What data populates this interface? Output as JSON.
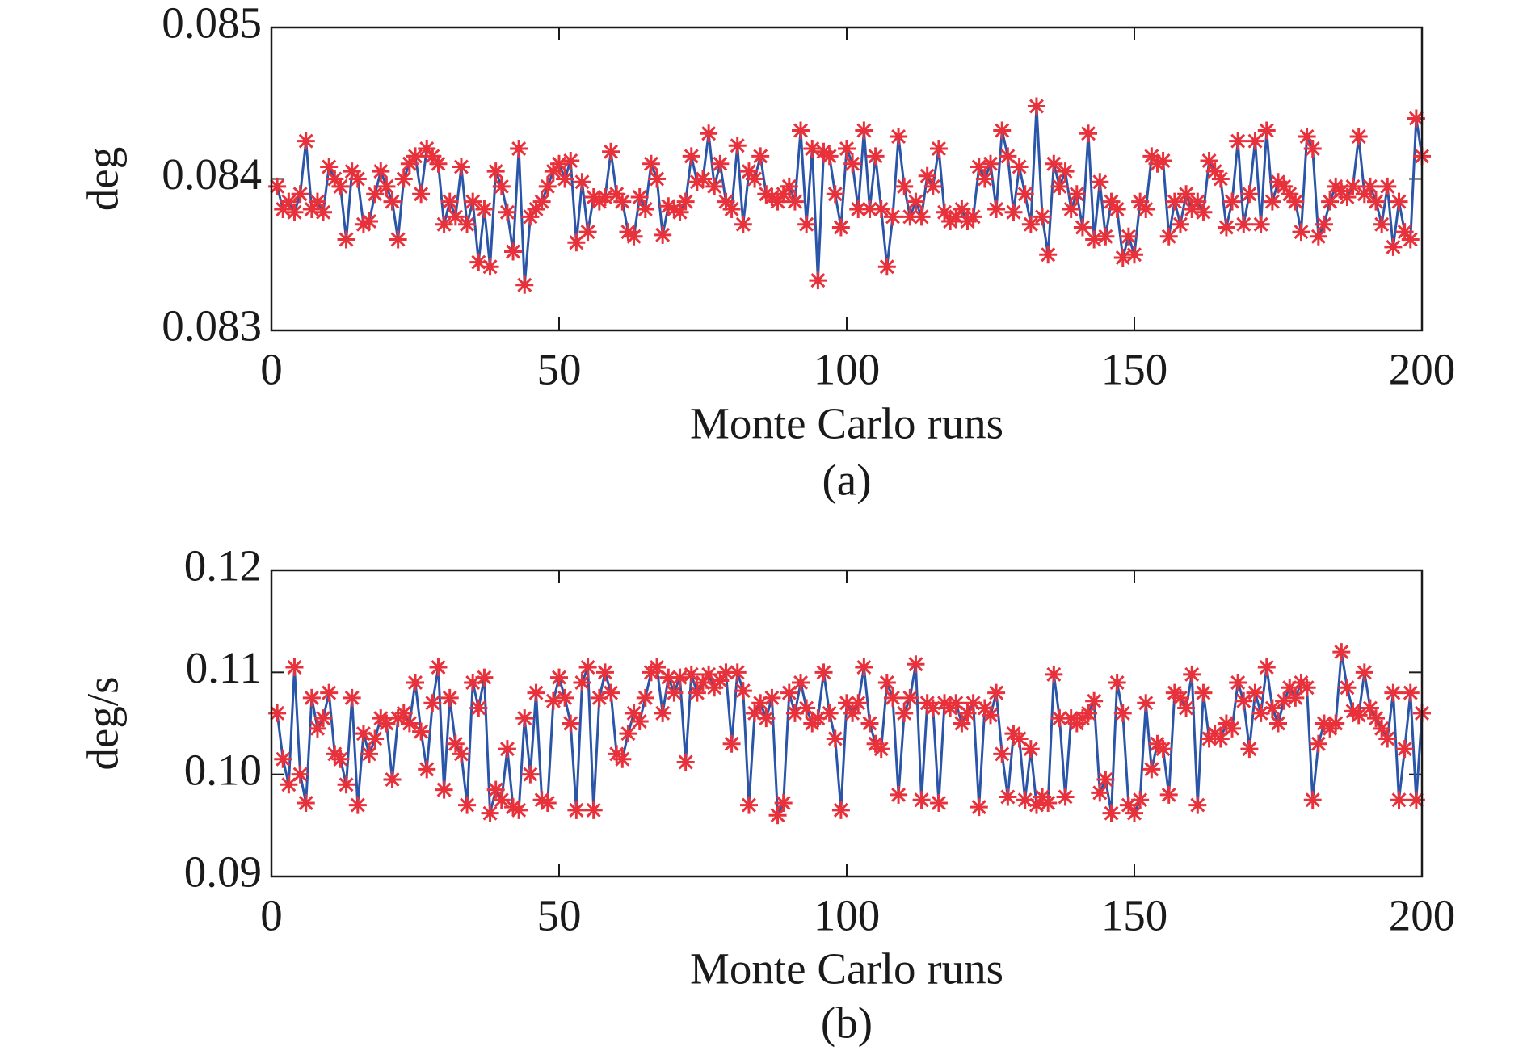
{
  "chart_data": [
    {
      "type": "line",
      "ylabel": "deg",
      "xlabel": "Monte Carlo runs",
      "caption": "(a)",
      "xlim": [
        0,
        200
      ],
      "xticks": [
        0,
        50,
        100,
        150,
        200
      ],
      "ylim": [
        0.083,
        0.085
      ],
      "yticks": [
        0.083,
        0.084,
        0.085
      ],
      "line_color": "#2b55a8",
      "marker_color": "#e8313a",
      "marker": "asterisk",
      "x": [
        1,
        2,
        3,
        4,
        5,
        6,
        7,
        8,
        9,
        10,
        11,
        12,
        13,
        14,
        15,
        16,
        17,
        18,
        19,
        20,
        21,
        22,
        23,
        24,
        25,
        26,
        27,
        28,
        29,
        30,
        31,
        32,
        33,
        34,
        35,
        36,
        37,
        38,
        39,
        40,
        41,
        42,
        43,
        44,
        45,
        46,
        47,
        48,
        49,
        50,
        51,
        52,
        53,
        54,
        55,
        56,
        57,
        58,
        59,
        60,
        61,
        62,
        63,
        64,
        65,
        66,
        67,
        68,
        69,
        70,
        71,
        72,
        73,
        74,
        75,
        76,
        77,
        78,
        79,
        80,
        81,
        82,
        83,
        84,
        85,
        86,
        87,
        88,
        89,
        90,
        91,
        92,
        93,
        94,
        95,
        96,
        97,
        98,
        99,
        100,
        101,
        102,
        103,
        104,
        105,
        106,
        107,
        108,
        109,
        110,
        111,
        112,
        113,
        114,
        115,
        116,
        117,
        118,
        119,
        120,
        121,
        122,
        123,
        124,
        125,
        126,
        127,
        128,
        129,
        130,
        131,
        132,
        133,
        134,
        135,
        136,
        137,
        138,
        139,
        140,
        141,
        142,
        143,
        144,
        145,
        146,
        147,
        148,
        149,
        150,
        151,
        152,
        153,
        154,
        155,
        156,
        157,
        158,
        159,
        160,
        161,
        162,
        163,
        164,
        165,
        166,
        167,
        168,
        169,
        170,
        171,
        172,
        173,
        174,
        175,
        176,
        177,
        178,
        179,
        180,
        181,
        182,
        183,
        184,
        185,
        186,
        187,
        188,
        189,
        190,
        191,
        192,
        193,
        194,
        195,
        196,
        197,
        198,
        199,
        200
      ],
      "values": [
        0.08395,
        0.0838,
        0.08385,
        0.08378,
        0.0839,
        0.08425,
        0.0838,
        0.08385,
        0.08378,
        0.08408,
        0.084,
        0.08395,
        0.0836,
        0.08405,
        0.084,
        0.0837,
        0.08372,
        0.0839,
        0.08405,
        0.08395,
        0.08385,
        0.0836,
        0.084,
        0.0841,
        0.08415,
        0.0839,
        0.0842,
        0.08415,
        0.0841,
        0.0837,
        0.08385,
        0.08375,
        0.08408,
        0.0837,
        0.08385,
        0.08345,
        0.0838,
        0.08342,
        0.08405,
        0.08395,
        0.08378,
        0.08352,
        0.0842,
        0.0833,
        0.08375,
        0.0838,
        0.08385,
        0.08395,
        0.08405,
        0.0841,
        0.084,
        0.08412,
        0.08358,
        0.08398,
        0.08365,
        0.08388,
        0.08385,
        0.08388,
        0.08418,
        0.0839,
        0.08385,
        0.08365,
        0.08362,
        0.08388,
        0.0838,
        0.0841,
        0.084,
        0.08363,
        0.08382,
        0.0838,
        0.08378,
        0.08385,
        0.08415,
        0.08398,
        0.084,
        0.0843,
        0.08395,
        0.0841,
        0.08385,
        0.0838,
        0.08422,
        0.0837,
        0.08405,
        0.084,
        0.08415,
        0.0839,
        0.08388,
        0.08385,
        0.0839,
        0.08395,
        0.08385,
        0.08432,
        0.0837,
        0.0842,
        0.08333,
        0.08418,
        0.08415,
        0.0839,
        0.08368,
        0.0842,
        0.0841,
        0.0838,
        0.08432,
        0.0838,
        0.08415,
        0.0838,
        0.08342,
        0.08375,
        0.08428,
        0.08395,
        0.08375,
        0.08385,
        0.08375,
        0.08402,
        0.08395,
        0.0842,
        0.08378,
        0.08372,
        0.08375,
        0.0838,
        0.08372,
        0.08375,
        0.08408,
        0.084,
        0.0841,
        0.0838,
        0.08432,
        0.08415,
        0.08378,
        0.08408,
        0.0839,
        0.0837,
        0.08448,
        0.08375,
        0.0835,
        0.0841,
        0.08395,
        0.08405,
        0.0838,
        0.0839,
        0.08368,
        0.0843,
        0.0836,
        0.08398,
        0.08362,
        0.08385,
        0.0838,
        0.08348,
        0.08362,
        0.0835,
        0.08385,
        0.0838,
        0.08415,
        0.0841,
        0.08412,
        0.08362,
        0.08385,
        0.0837,
        0.0839,
        0.0838,
        0.08385,
        0.08378,
        0.08412,
        0.08405,
        0.084,
        0.08368,
        0.08385,
        0.08425,
        0.0837,
        0.0839,
        0.08425,
        0.0837,
        0.08432,
        0.08385,
        0.08398,
        0.08395,
        0.0839,
        0.08385,
        0.08365,
        0.08428,
        0.0842,
        0.08362,
        0.0837,
        0.08385,
        0.08395,
        0.08392,
        0.08388,
        0.08395,
        0.08428,
        0.0839,
        0.08395,
        0.08385,
        0.0837,
        0.08395,
        0.08355,
        0.08385,
        0.08365,
        0.0836,
        0.0844,
        0.08415
      ]
    },
    {
      "type": "line",
      "ylabel": "deg/s",
      "xlabel": "Monte Carlo runs",
      "caption": "(b)",
      "xlim": [
        0,
        200
      ],
      "xticks": [
        0,
        50,
        100,
        150,
        200
      ],
      "ylim": [
        0.09,
        0.12
      ],
      "yticks": [
        0.09,
        {
          "value": 0.1,
          "label": "0.10"
        },
        0.11,
        0.12
      ],
      "line_color": "#2b55a8",
      "marker_color": "#e8313a",
      "marker": "asterisk",
      "x": [
        1,
        2,
        3,
        4,
        5,
        6,
        7,
        8,
        9,
        10,
        11,
        12,
        13,
        14,
        15,
        16,
        17,
        18,
        19,
        20,
        21,
        22,
        23,
        24,
        25,
        26,
        27,
        28,
        29,
        30,
        31,
        32,
        33,
        34,
        35,
        36,
        37,
        38,
        39,
        40,
        41,
        42,
        43,
        44,
        45,
        46,
        47,
        48,
        49,
        50,
        51,
        52,
        53,
        54,
        55,
        56,
        57,
        58,
        59,
        60,
        61,
        62,
        63,
        64,
        65,
        66,
        67,
        68,
        69,
        70,
        71,
        72,
        73,
        74,
        75,
        76,
        77,
        78,
        79,
        80,
        81,
        82,
        83,
        84,
        85,
        86,
        87,
        88,
        89,
        90,
        91,
        92,
        93,
        94,
        95,
        96,
        97,
        98,
        99,
        100,
        101,
        102,
        103,
        104,
        105,
        106,
        107,
        108,
        109,
        110,
        111,
        112,
        113,
        114,
        115,
        116,
        117,
        118,
        119,
        120,
        121,
        122,
        123,
        124,
        125,
        126,
        127,
        128,
        129,
        130,
        131,
        132,
        133,
        134,
        135,
        136,
        137,
        138,
        139,
        140,
        141,
        142,
        143,
        144,
        145,
        146,
        147,
        148,
        149,
        150,
        151,
        152,
        153,
        154,
        155,
        156,
        157,
        158,
        159,
        160,
        161,
        162,
        163,
        164,
        165,
        166,
        167,
        168,
        169,
        170,
        171,
        172,
        173,
        174,
        175,
        176,
        177,
        178,
        179,
        180,
        181,
        182,
        183,
        184,
        185,
        186,
        187,
        188,
        189,
        190,
        191,
        192,
        193,
        194,
        195,
        196,
        197,
        198,
        199,
        200
      ],
      "values": [
        0.106,
        0.1015,
        0.099,
        0.1105,
        0.1,
        0.0972,
        0.1075,
        0.1045,
        0.1055,
        0.108,
        0.102,
        0.1015,
        0.099,
        0.1075,
        0.097,
        0.104,
        0.102,
        0.1035,
        0.1055,
        0.105,
        0.0995,
        0.1055,
        0.106,
        0.105,
        0.109,
        0.1042,
        0.1005,
        0.107,
        0.1105,
        0.0985,
        0.1075,
        0.103,
        0.102,
        0.097,
        0.109,
        0.1065,
        0.1095,
        0.0962,
        0.0985,
        0.0975,
        0.1025,
        0.0968,
        0.0965,
        0.1055,
        0.1,
        0.108,
        0.0975,
        0.0972,
        0.1072,
        0.1095,
        0.1075,
        0.105,
        0.0965,
        0.109,
        0.1105,
        0.0965,
        0.1075,
        0.11,
        0.108,
        0.102,
        0.1015,
        0.104,
        0.106,
        0.1052,
        0.1075,
        0.11,
        0.1105,
        0.106,
        0.1095,
        0.108,
        0.1095,
        0.1012,
        0.1098,
        0.108,
        0.109,
        0.1098,
        0.1085,
        0.1092,
        0.11,
        0.103,
        0.11,
        0.1082,
        0.097,
        0.106,
        0.107,
        0.1055,
        0.1075,
        0.096,
        0.0972,
        0.108,
        0.106,
        0.109,
        0.1065,
        0.105,
        0.1055,
        0.11,
        0.106,
        0.1035,
        0.0965,
        0.107,
        0.106,
        0.107,
        0.1105,
        0.105,
        0.103,
        0.1025,
        0.109,
        0.1075,
        0.098,
        0.106,
        0.1075,
        0.1108,
        0.0975,
        0.107,
        0.1065,
        0.0972,
        0.107,
        0.1065,
        0.107,
        0.105,
        0.106,
        0.107,
        0.0968,
        0.1065,
        0.1058,
        0.108,
        0.102,
        0.0978,
        0.104,
        0.1035,
        0.0975,
        0.1025,
        0.097,
        0.0978,
        0.0972,
        0.1098,
        0.1055,
        0.0978,
        0.1055,
        0.105,
        0.1055,
        0.106,
        0.1072,
        0.0982,
        0.0995,
        0.0962,
        0.109,
        0.106,
        0.097,
        0.0962,
        0.0975,
        0.107,
        0.1005,
        0.103,
        0.1025,
        0.098,
        0.108,
        0.1075,
        0.1065,
        0.1098,
        0.097,
        0.108,
        0.1035,
        0.104,
        0.1035,
        0.105,
        0.1045,
        0.109,
        0.1072,
        0.1025,
        0.108,
        0.106,
        0.1105,
        0.1065,
        0.105,
        0.1072,
        0.1085,
        0.1075,
        0.109,
        0.1085,
        0.0975,
        0.103,
        0.105,
        0.1045,
        0.105,
        0.112,
        0.1085,
        0.1062,
        0.1058,
        0.11,
        0.1065,
        0.1055,
        0.1045,
        0.1035,
        0.108,
        0.0975,
        0.1025,
        0.108,
        0.0975,
        0.106
      ]
    }
  ]
}
